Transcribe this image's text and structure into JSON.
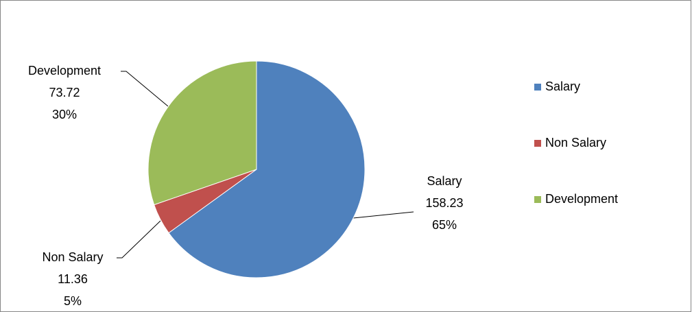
{
  "chart_data": {
    "type": "pie",
    "categories": [
      "Salary",
      "Non Salary",
      "Development"
    ],
    "values": [
      158.23,
      11.36,
      73.72
    ],
    "percent_labels": [
      "65%",
      "5%",
      "30%"
    ],
    "colors": [
      "#4f81bd",
      "#c0504d",
      "#9bbb59"
    ],
    "legend": "right"
  }
}
